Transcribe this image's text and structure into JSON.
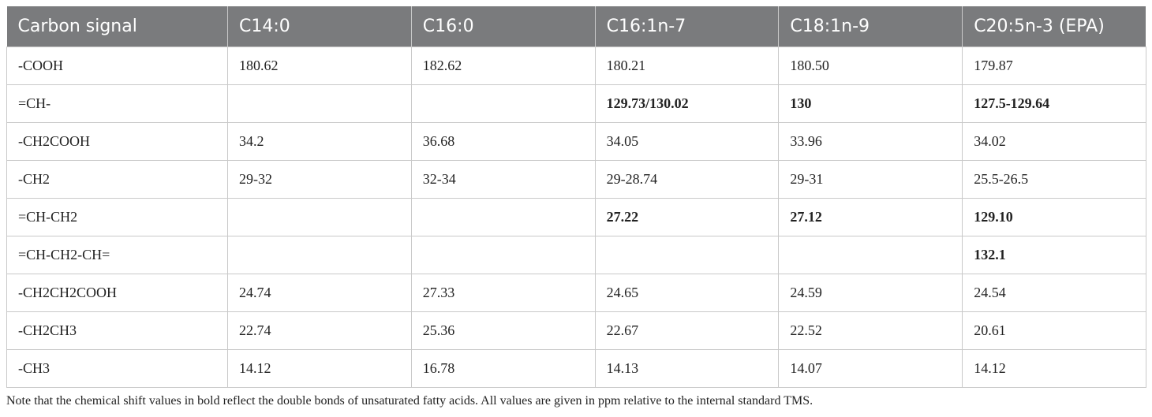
{
  "table": {
    "headers": [
      "Carbon signal",
      "C14:0",
      "C16:0",
      "C16:1n-7",
      "C18:1n-9",
      "C20:5n-3 (EPA)"
    ],
    "rows": [
      {
        "cells": [
          "-COOH",
          "180.62",
          "182.62",
          "180.21",
          "180.50",
          "179.87"
        ],
        "bold": [
          false,
          false,
          false,
          false,
          false,
          false
        ]
      },
      {
        "cells": [
          "=CH-",
          "",
          "",
          "129.73/130.02",
          "130",
          "127.5-129.64"
        ],
        "bold": [
          false,
          false,
          false,
          true,
          true,
          true
        ]
      },
      {
        "cells": [
          "-CH2COOH",
          "34.2",
          "36.68",
          "34.05",
          "33.96",
          "34.02"
        ],
        "bold": [
          false,
          false,
          false,
          false,
          false,
          false
        ]
      },
      {
        "cells": [
          "-CH2",
          "29-32",
          "32-34",
          "29-28.74",
          "29-31",
          "25.5-26.5"
        ],
        "bold": [
          false,
          false,
          false,
          false,
          false,
          false
        ]
      },
      {
        "cells": [
          "=CH-CH2",
          "",
          "",
          "27.22",
          "27.12",
          "129.10"
        ],
        "bold": [
          false,
          false,
          false,
          true,
          true,
          true
        ]
      },
      {
        "cells": [
          "=CH-CH2-CH=",
          "",
          "",
          "",
          "",
          "132.1"
        ],
        "bold": [
          false,
          false,
          false,
          false,
          false,
          true
        ]
      },
      {
        "cells": [
          "-CH2CH2COOH",
          "24.74",
          "27.33",
          "24.65",
          "24.59",
          "24.54"
        ],
        "bold": [
          false,
          false,
          false,
          false,
          false,
          false
        ]
      },
      {
        "cells": [
          "-CH2CH3",
          "22.74",
          "25.36",
          "22.67",
          "22.52",
          "20.61"
        ],
        "bold": [
          false,
          false,
          false,
          false,
          false,
          false
        ]
      },
      {
        "cells": [
          "-CH3",
          "14.12",
          "16.78",
          "14.13",
          "14.07",
          "14.12"
        ],
        "bold": [
          false,
          false,
          false,
          false,
          false,
          false
        ]
      }
    ]
  },
  "note": "Note that the chemical shift values in bold reflect the double bonds of unsaturated fatty acids. All values are given in ppm relative to the internal standard TMS.",
  "colors": {
    "header_bg": "#7a7b7d",
    "header_text": "#ffffff",
    "grid": "#c9c9c9"
  }
}
